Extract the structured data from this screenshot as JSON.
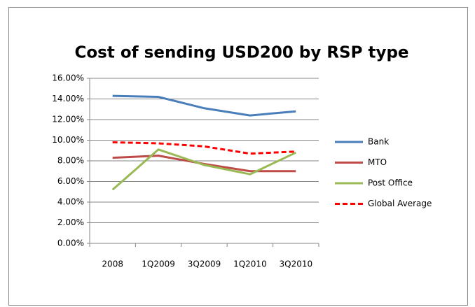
{
  "chart_data": {
    "type": "line",
    "title": "Cost of sending USD200 by RSP type",
    "categories": [
      "2008",
      "1Q2009",
      "3Q2009",
      "1Q2010",
      "3Q2010"
    ],
    "series": [
      {
        "name": "Bank",
        "color": "#4a7ebb",
        "values": [
          14.3,
          14.2,
          13.1,
          12.4,
          12.8
        ]
      },
      {
        "name": "MTO",
        "color": "#be4b48",
        "values": [
          8.3,
          8.5,
          7.7,
          7.0,
          7.0
        ]
      },
      {
        "name": "Post Office",
        "color": "#98b954",
        "values": [
          5.2,
          9.1,
          7.6,
          6.7,
          8.8
        ]
      },
      {
        "name": "Global Average",
        "color": "#ff0000",
        "dashed": true,
        "values": [
          9.8,
          9.7,
          9.4,
          8.7,
          8.9
        ]
      }
    ],
    "ylim": [
      0,
      16
    ],
    "yticks": [
      {
        "value": 0,
        "label": "0.00%"
      },
      {
        "value": 2,
        "label": "2.00%"
      },
      {
        "value": 4,
        "label": "4.00%"
      },
      {
        "value": 6,
        "label": "6.00%"
      },
      {
        "value": 8,
        "label": "8.00%"
      },
      {
        "value": 10,
        "label": "10.00%"
      },
      {
        "value": 12,
        "label": "12.00%"
      },
      {
        "value": 14,
        "label": "14.00%"
      },
      {
        "value": 16,
        "label": "16.00%"
      }
    ],
    "grid": true,
    "legend": "right"
  }
}
